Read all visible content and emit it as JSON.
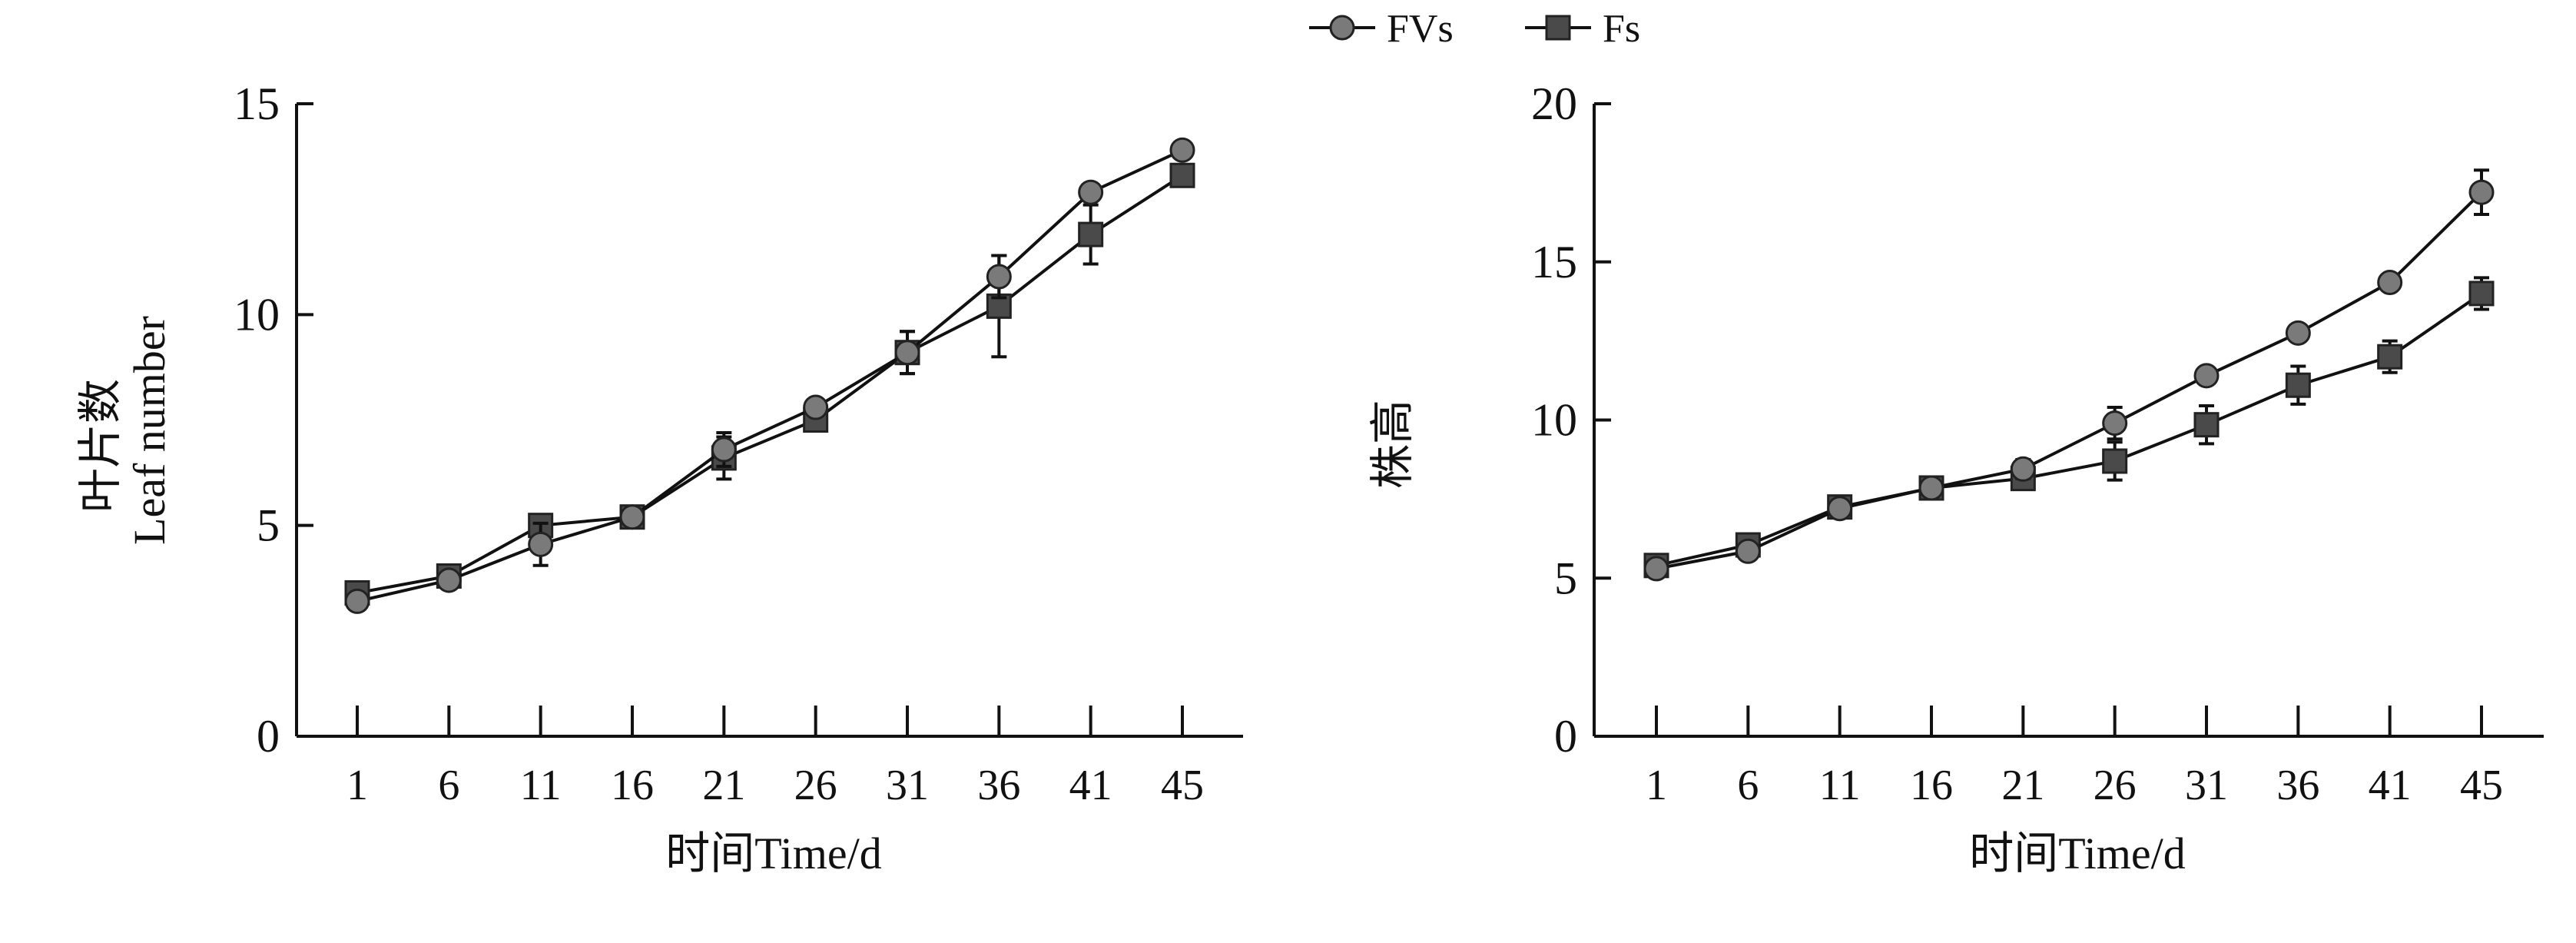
{
  "legend": {
    "items": [
      {
        "name": "FVs",
        "marker": "circle"
      },
      {
        "name": "Fs",
        "marker": "square"
      }
    ],
    "placement": "top-center"
  },
  "colors": {
    "FVs": "#7a7a7a",
    "Fs": "#4a4a4a",
    "line": "#111111"
  },
  "chart_data": [
    {
      "type": "line",
      "title": "",
      "xlabel": "时间Time/d",
      "ylabel": [
        "叶片数",
        "Leaf number"
      ],
      "categories": [
        "1",
        "6",
        "11",
        "16",
        "21",
        "26",
        "31",
        "36",
        "41",
        "45"
      ],
      "ylim": [
        0,
        15
      ],
      "yticks": [
        "0",
        "5",
        "10",
        "15"
      ],
      "grid": false,
      "series": [
        {
          "name": "FVs",
          "values": [
            3.2,
            3.7,
            4.55,
            5.2,
            6.8,
            7.8,
            9.1,
            10.9,
            12.9,
            13.9
          ],
          "errors": [
            0.2,
            0.2,
            0.5,
            0.1,
            0.4,
            0.1,
            0.5,
            0.5,
            0.2,
            0.2
          ]
        },
        {
          "name": "Fs",
          "values": [
            3.4,
            3.8,
            5.0,
            5.2,
            6.6,
            7.5,
            9.1,
            10.2,
            11.9,
            13.3
          ],
          "errors": [
            0.2,
            0.1,
            0.2,
            0.1,
            0.5,
            0.1,
            0.5,
            1.2,
            0.7,
            0.2
          ]
        }
      ]
    },
    {
      "type": "line",
      "title": "",
      "xlabel": "时间Time/d",
      "ylabel": [
        "株高"
      ],
      "categories": [
        "1",
        "6",
        "11",
        "16",
        "21",
        "26",
        "31",
        "36",
        "41",
        "45"
      ],
      "ylim": [
        0,
        20
      ],
      "yticks": [
        "0",
        "5",
        "10",
        "15",
        "20"
      ],
      "grid": false,
      "series": [
        {
          "name": "FVs",
          "values": [
            5.3,
            5.85,
            7.2,
            7.85,
            8.45,
            9.9,
            11.4,
            12.75,
            14.35,
            17.2
          ],
          "errors": [
            0.2,
            0.2,
            0.1,
            0.1,
            0.3,
            0.5,
            0.2,
            0.2,
            0.2,
            0.7
          ]
        },
        {
          "name": "Fs",
          "values": [
            5.4,
            6.05,
            7.25,
            7.85,
            8.15,
            8.7,
            9.85,
            11.1,
            12.0,
            14.0
          ],
          "errors": [
            0.2,
            0.2,
            0.1,
            0.1,
            0.3,
            0.6,
            0.6,
            0.6,
            0.5,
            0.5
          ]
        }
      ]
    }
  ]
}
